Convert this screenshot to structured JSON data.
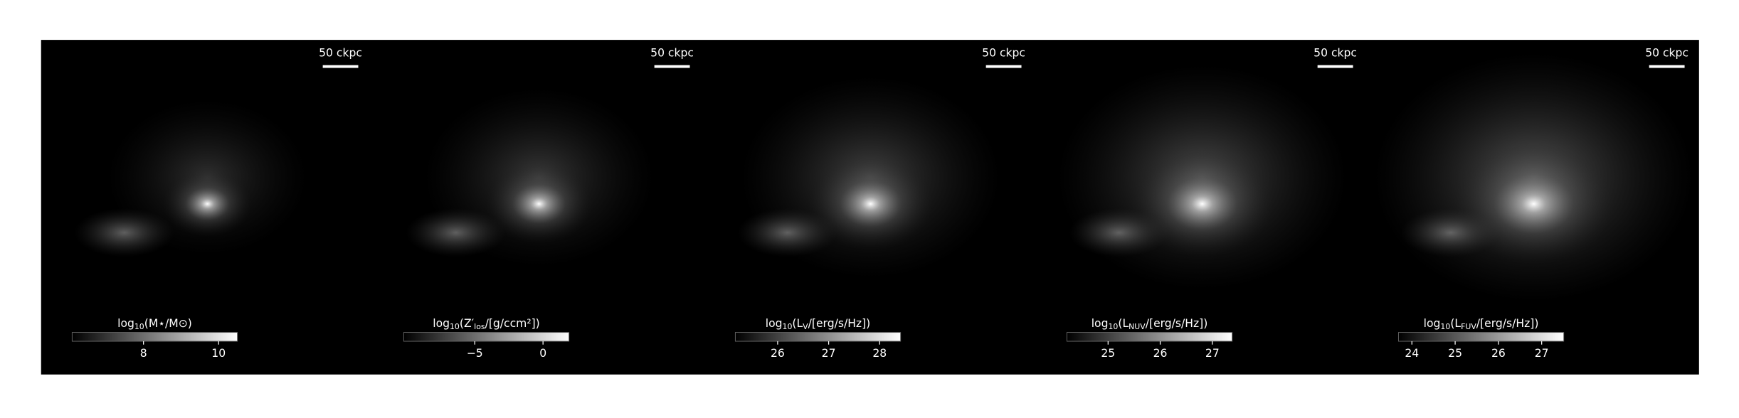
{
  "panels": [
    {
      "scale_bar": "50 ckpc",
      "colorbar": {
        "label": [
          "log",
          "10",
          "(M⋆/M⊙)"
        ],
        "clim": [
          6.1,
          10.5
        ],
        "ticks": [
          8,
          10
        ]
      }
    },
    {
      "scale_bar": "50 ckpc",
      "colorbar": {
        "label": [
          "log",
          "10",
          "(Z′",
          "los",
          "/[g/ccm²])"
        ],
        "clim": [
          -10.2,
          1.9
        ],
        "ticks": [
          {
            "value": -5,
            "label": "−5"
          },
          0
        ]
      }
    },
    {
      "scale_bar": "50 ckpc",
      "colorbar": {
        "label": [
          "log",
          "10",
          "(L",
          "V",
          "/[erg/s/Hz])"
        ],
        "clim": [
          25.17,
          28.41
        ],
        "ticks": [
          26,
          27,
          28
        ]
      }
    },
    {
      "scale_bar": "50 ckpc",
      "colorbar": {
        "label": [
          "log",
          "10",
          "(L",
          "NUV",
          "/[erg/s/Hz])"
        ],
        "clim": [
          24.21,
          27.38
        ],
        "ticks": [
          25,
          26,
          27
        ]
      }
    },
    {
      "scale_bar": "50 ckpc",
      "colorbar": {
        "label": [
          "log",
          "10",
          "(L",
          "FUV",
          "/[erg/s/Hz])"
        ],
        "clim": [
          23.69,
          27.51
        ],
        "ticks": [
          24,
          25,
          26,
          27
        ]
      }
    }
  ]
}
